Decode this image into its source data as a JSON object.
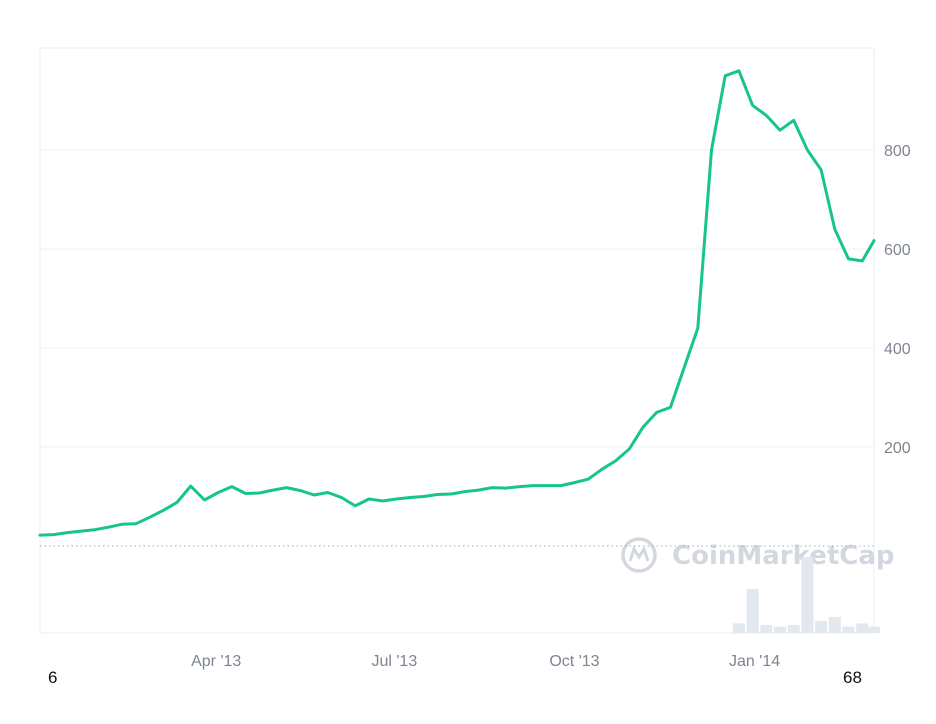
{
  "chart_data": {
    "type": "line",
    "title": "",
    "xlabel": "",
    "ylabel": "",
    "y_ticks": [
      200,
      400,
      600,
      800
    ],
    "y_tick_labels": [
      "200",
      "400",
      "600",
      "800"
    ],
    "ylim": [
      -180,
      1000
    ],
    "y_axis_side": "right",
    "grid": true,
    "baseline": 0,
    "x_ticks": [
      {
        "date": "2013-04-01",
        "label": "Apr '13"
      },
      {
        "date": "2013-07-01",
        "label": "Jul '13"
      },
      {
        "date": "2013-10-01",
        "label": "Oct '13"
      },
      {
        "date": "2014-01-01",
        "label": "Jan '14"
      }
    ],
    "xlim": [
      "2013-01-01",
      "2014-03-03"
    ],
    "start_label": "6",
    "end_label": "68",
    "series": [
      {
        "name": "",
        "color": "#16c784",
        "x": [
          "2013-01-01",
          "2013-01-08",
          "2013-01-15",
          "2013-01-22",
          "2013-01-29",
          "2013-02-05",
          "2013-02-12",
          "2013-02-19",
          "2013-02-26",
          "2013-03-05",
          "2013-03-12",
          "2013-03-19",
          "2013-03-26",
          "2013-04-02",
          "2013-04-09",
          "2013-04-16",
          "2013-04-23",
          "2013-04-30",
          "2013-05-07",
          "2013-05-14",
          "2013-05-21",
          "2013-05-28",
          "2013-06-04",
          "2013-06-11",
          "2013-06-18",
          "2013-06-25",
          "2013-07-02",
          "2013-07-09",
          "2013-07-16",
          "2013-07-23",
          "2013-07-30",
          "2013-08-06",
          "2013-08-13",
          "2013-08-20",
          "2013-08-27",
          "2013-09-03",
          "2013-09-10",
          "2013-09-17",
          "2013-09-24",
          "2013-10-01",
          "2013-10-08",
          "2013-10-15",
          "2013-10-22",
          "2013-10-29",
          "2013-11-05",
          "2013-11-12",
          "2013-11-19",
          "2013-11-26",
          "2013-12-03",
          "2013-12-10",
          "2013-12-17",
          "2013-12-24",
          "2013-12-31",
          "2014-01-07",
          "2014-01-14",
          "2014-01-21",
          "2014-01-28",
          "2014-02-04",
          "2014-02-11",
          "2014-02-18",
          "2014-02-25",
          "2014-03-03"
        ],
        "values": [
          22,
          23,
          27,
          30,
          33,
          38,
          44,
          45,
          58,
          72,
          88,
          121,
          93,
          108,
          120,
          106,
          107,
          113,
          118,
          112,
          103,
          108,
          98,
          81,
          95,
          91,
          95,
          98,
          100,
          104,
          105,
          110,
          113,
          118,
          117,
          120,
          122,
          122,
          122,
          128,
          135,
          155,
          172,
          196,
          240,
          270,
          280,
          360,
          440,
          800,
          950,
          960,
          890,
          870,
          840,
          860,
          800,
          760,
          640,
          580,
          576,
          617
        ],
        "values_note": ""
      }
    ]
  },
  "branding": {
    "watermark_text": "CoinMarketCap",
    "watermark_icon": "coinmarketcap-logo-icon"
  },
  "volume": {
    "color": "#e3e7ee",
    "values": [
      0,
      0,
      0,
      0,
      0,
      0,
      0,
      0,
      0,
      0,
      0,
      0,
      0,
      0,
      0,
      0,
      0,
      0,
      0,
      0,
      0,
      0,
      0,
      0,
      0,
      0,
      0,
      0,
      0,
      0,
      0,
      0,
      0,
      0,
      0,
      0,
      0,
      0,
      0,
      0,
      0,
      0,
      0,
      0,
      0,
      0,
      0,
      0,
      0,
      0,
      0,
      0.12,
      0.55,
      0.1,
      0.08,
      0.1,
      0.95,
      0.15,
      0.2,
      0.08,
      0.12,
      0.08
    ]
  }
}
